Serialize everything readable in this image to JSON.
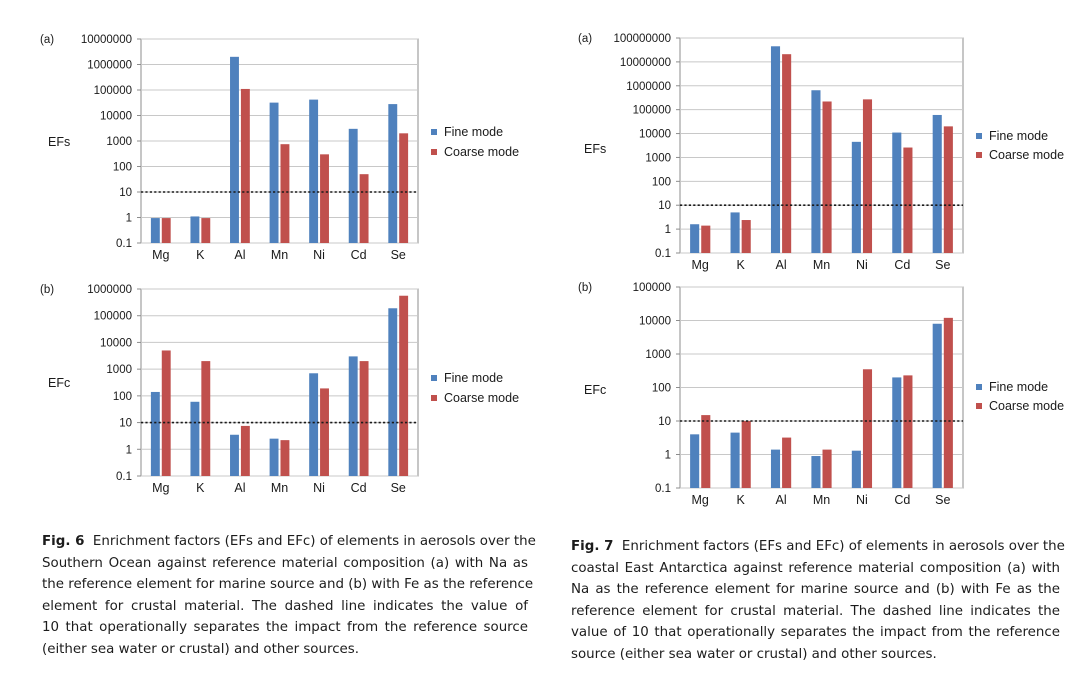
{
  "colors": {
    "fine": "#4f81bd",
    "coarse": "#c0504d",
    "grid": "#c8c8c8",
    "axis": "#8c8c8c"
  },
  "threshold": 10,
  "chart_data": [
    {
      "id": "fig6a",
      "panel": "(a)",
      "type": "bar",
      "scale": "log",
      "ylabel": "EFs",
      "categories": [
        "Mg",
        "K",
        "Al",
        "Mn",
        "Ni",
        "Cd",
        "Se"
      ],
      "ylim": [
        0.1,
        10000000
      ],
      "yticks": [
        "0.1",
        "1",
        "10",
        "100",
        "1000",
        "10000",
        "100000",
        "1000000",
        "10000000"
      ],
      "series": [
        {
          "name": "Fine mode",
          "values": [
            0.95,
            1.1,
            2000000,
            32000,
            42000,
            3000,
            28000
          ]
        },
        {
          "name": "Coarse mode",
          "values": [
            0.95,
            0.95,
            110000,
            750,
            300,
            50,
            2000
          ]
        }
      ]
    },
    {
      "id": "fig6b",
      "panel": "(b)",
      "type": "bar",
      "scale": "log",
      "ylabel": "EFc",
      "categories": [
        "Mg",
        "K",
        "Al",
        "Mn",
        "Ni",
        "Cd",
        "Se"
      ],
      "ylim": [
        0.1,
        1000000
      ],
      "yticks": [
        "0.1",
        "1",
        "10",
        "100",
        "1000",
        "10000",
        "100000",
        "1000000"
      ],
      "series": [
        {
          "name": "Fine mode",
          "values": [
            140,
            60,
            3.5,
            2.5,
            700,
            3000,
            190000
          ]
        },
        {
          "name": "Coarse mode",
          "values": [
            5000,
            2000,
            7.5,
            2.2,
            190,
            2000,
            560000
          ]
        }
      ]
    },
    {
      "id": "fig7a",
      "panel": "(a)",
      "type": "bar",
      "scale": "log",
      "ylabel": "EFs",
      "categories": [
        "Mg",
        "K",
        "Al",
        "Mn",
        "Ni",
        "Cd",
        "Se"
      ],
      "ylim": [
        0.1,
        100000000
      ],
      "yticks": [
        "0.1",
        "1",
        "10",
        "100",
        "1000",
        "10000",
        "100000",
        "1000000",
        "10000000",
        "100000000"
      ],
      "series": [
        {
          "name": "Fine mode",
          "values": [
            1.6,
            5,
            45000000,
            650000,
            4500,
            11000,
            60000
          ]
        },
        {
          "name": "Coarse mode",
          "values": [
            1.4,
            2.4,
            21000000,
            220000,
            270000,
            2600,
            20000
          ]
        }
      ]
    },
    {
      "id": "fig7b",
      "panel": "(b)",
      "type": "bar",
      "scale": "log",
      "ylabel": "EFc",
      "categories": [
        "Mg",
        "K",
        "Al",
        "Mn",
        "Ni",
        "Cd",
        "Se"
      ],
      "ylim": [
        0.1,
        100000
      ],
      "yticks": [
        "0.1",
        "1",
        "10",
        "100",
        "1000",
        "10000",
        "100000"
      ],
      "series": [
        {
          "name": "Fine mode",
          "values": [
            4,
            4.5,
            1.4,
            0.9,
            1.3,
            200,
            8000
          ]
        },
        {
          "name": "Coarse mode",
          "values": [
            15,
            10,
            3.2,
            1.4,
            350,
            230,
            12000
          ]
        }
      ]
    }
  ],
  "captions": {
    "fig6": {
      "label": "Fig. 6",
      "lines": [
        "Enrichment factors (EFs and EFc) of elements in aerosols over the",
        "Southern Ocean against reference material composition (a) with Na as",
        "the reference element for marine source and (b) with Fe as the reference",
        "element for crustal material. The dashed line indicates the value of",
        "10 that operationally separates the impact from the reference source",
        "(either sea water or crustal) and other sources."
      ]
    },
    "fig7": {
      "label": "Fig. 7",
      "lines": [
        "Enrichment factors (EFs and EFc) of elements in aerosols over the",
        "coastal East Antarctica against reference material composition (a) with",
        "Na as the reference element for marine source and (b) with Fe as the",
        "reference element for crustal material. The dashed line indicates the",
        "value of 10 that operationally separates the impact from the reference",
        "source (either sea water or crustal) and other sources."
      ]
    }
  }
}
